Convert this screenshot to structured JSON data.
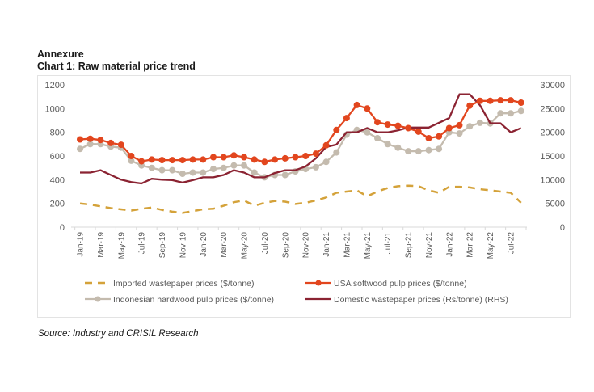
{
  "header": {
    "annexure": "Annexure",
    "chart_title": "Chart 1: Raw material price trend"
  },
  "source": "Source: Industry and CRISIL Research",
  "colors": {
    "imported_wastepaper": "#D4A23A",
    "usa_softwood": "#E2461E",
    "indonesian_hardwood": "#C4BBAE",
    "domestic_wastepaper": "#8B2332",
    "axis": "#d9d9d9",
    "tick_text": "#595959"
  },
  "chart_data": {
    "type": "line",
    "title": "Chart 1: Raw material price trend",
    "xlabel": "",
    "ylabel": "",
    "ylim": [
      0,
      1200
    ],
    "y2lim": [
      0,
      30000
    ],
    "yticks": [
      "0",
      "200",
      "400",
      "600",
      "800",
      "1000",
      "1200"
    ],
    "y2ticks": [
      "0",
      "5000",
      "10000",
      "15000",
      "20000",
      "25000",
      "30000"
    ],
    "grid": false,
    "legend_position": "bottom",
    "x": [
      "Jan-19",
      "Feb-19",
      "Mar-19",
      "Apr-19",
      "May-19",
      "Jun-19",
      "Jul-19",
      "Aug-19",
      "Sep-19",
      "Oct-19",
      "Nov-19",
      "Dec-19",
      "Jan-20",
      "Feb-20",
      "Mar-20",
      "Apr-20",
      "May-20",
      "Jun-20",
      "Jul-20",
      "Aug-20",
      "Sep-20",
      "Oct-20",
      "Nov-20",
      "Dec-20",
      "Jan-21",
      "Feb-21",
      "Mar-21",
      "Apr-21",
      "May-21",
      "Jun-21",
      "Jul-21",
      "Aug-21",
      "Sep-21",
      "Oct-21",
      "Nov-21",
      "Dec-21",
      "Jan-22",
      "Feb-22",
      "Mar-22",
      "Apr-22",
      "May-22",
      "Jun-22",
      "Jul-22",
      "Aug-22"
    ],
    "xtick_labels": [
      "Jan-19",
      "Mar-19",
      "May-19",
      "Jul-19",
      "Sep-19",
      "Nov-19",
      "Jan-20",
      "Mar-20",
      "May-20",
      "Jul-20",
      "Sep-20",
      "Nov-20",
      "Jan-21",
      "Mar-21",
      "May-21",
      "Jul-21",
      "Sep-21",
      "Nov-21",
      "Jan-22",
      "Mar-22",
      "May-22",
      "Jul-22"
    ],
    "series": [
      {
        "key": "imported_wastepaper",
        "name": "Imported wastepaper prices ($/tonne)",
        "axis": "left",
        "style": "dashed",
        "values": [
          200,
          190,
          175,
          160,
          150,
          140,
          155,
          165,
          145,
          130,
          120,
          135,
          150,
          155,
          180,
          210,
          225,
          180,
          205,
          220,
          215,
          195,
          205,
          225,
          250,
          290,
          300,
          310,
          260,
          300,
          330,
          345,
          350,
          345,
          310,
          290,
          340,
          340,
          335,
          320,
          310,
          300,
          290,
          205
        ]
      },
      {
        "key": "usa_softwood",
        "name": "USA softwood pulp prices ($/tonne)",
        "axis": "left",
        "style": "markers",
        "values": [
          740,
          745,
          735,
          710,
          695,
          600,
          555,
          570,
          565,
          565,
          565,
          570,
          570,
          590,
          590,
          605,
          590,
          570,
          550,
          570,
          580,
          590,
          600,
          620,
          690,
          820,
          920,
          1030,
          1000,
          885,
          865,
          855,
          835,
          805,
          750,
          765,
          835,
          860,
          1025,
          1065,
          1065,
          1070,
          1070,
          1050
        ]
      },
      {
        "key": "indonesian_hardwood",
        "name": "Indonesian hardwood pulp prices ($/tonne)",
        "axis": "left",
        "style": "markers",
        "values": [
          660,
          700,
          700,
          680,
          670,
          560,
          520,
          500,
          480,
          480,
          450,
          460,
          460,
          490,
          500,
          520,
          520,
          460,
          420,
          440,
          440,
          470,
          490,
          505,
          550,
          630,
          780,
          820,
          800,
          750,
          700,
          670,
          640,
          640,
          650,
          660,
          800,
          790,
          850,
          880,
          875,
          960,
          960,
          980
        ]
      },
      {
        "key": "domestic_wastepaper",
        "name": "Domestic wastepaper prices (Rs/tonne) (RHS)",
        "axis": "right",
        "style": "solid",
        "values": [
          11500,
          11500,
          12000,
          11000,
          10000,
          9500,
          9200,
          10200,
          10000,
          9900,
          9400,
          9900,
          10500,
          10500,
          11000,
          12000,
          11500,
          10500,
          10500,
          11400,
          12000,
          12000,
          12800,
          14500,
          16900,
          17400,
          20000,
          20000,
          20900,
          20000,
          20000,
          20400,
          21000,
          21000,
          21000,
          22000,
          23000,
          28000,
          28000,
          25700,
          21900,
          21900,
          20000,
          20900
        ]
      }
    ]
  }
}
